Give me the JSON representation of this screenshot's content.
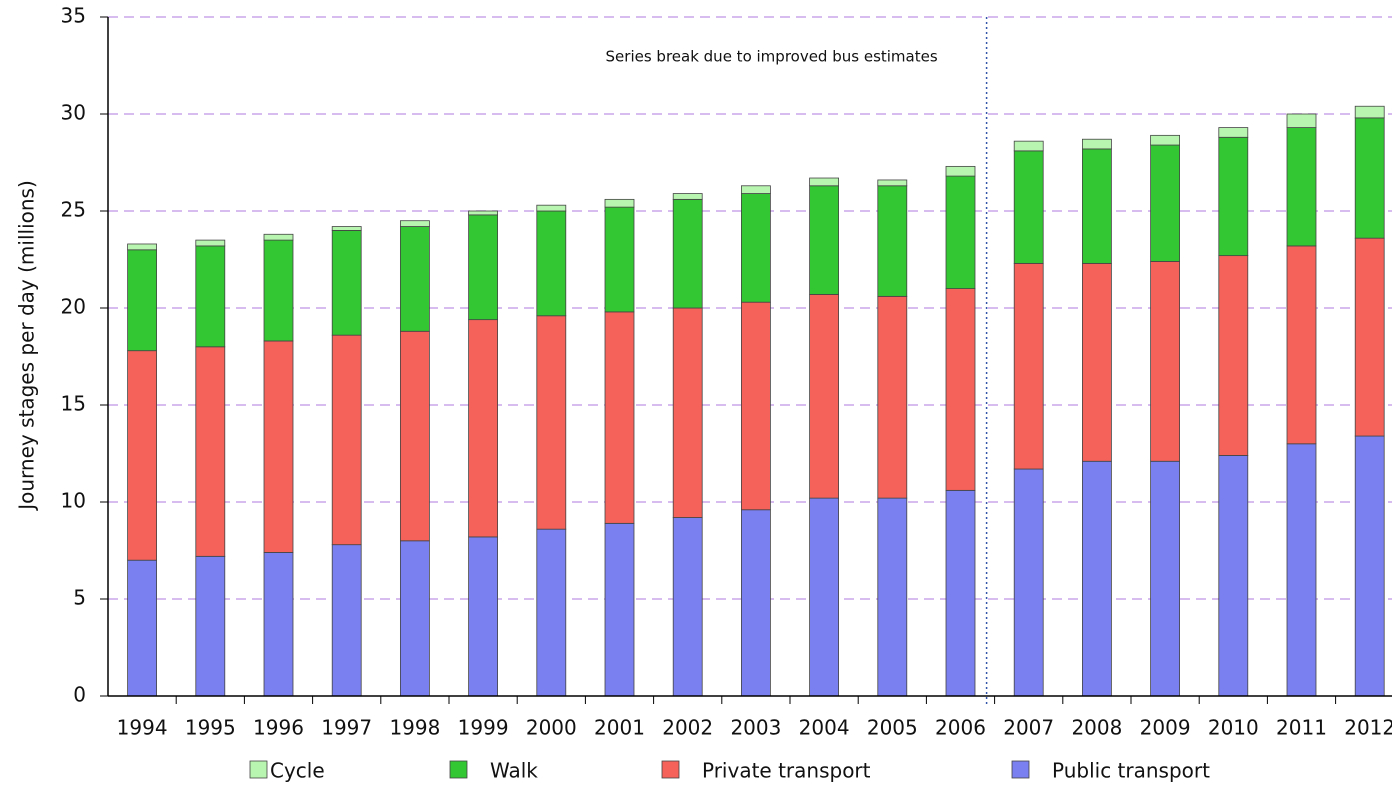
{
  "chart_data": {
    "type": "stacked_bar",
    "ylabel": "Journey stages per day (millions)",
    "categories": [
      "1994",
      "1995",
      "1996",
      "1997",
      "1998",
      "1999",
      "2000",
      "2001",
      "2002",
      "2003",
      "2004",
      "2005",
      "2006",
      "2007",
      "2008",
      "2009",
      "2010",
      "2011",
      "2012"
    ],
    "series": [
      {
        "name": "Public transport",
        "color": "#7b80f0",
        "values": [
          7.0,
          7.2,
          7.4,
          7.8,
          8.0,
          8.2,
          8.6,
          8.9,
          9.2,
          9.6,
          10.2,
          10.2,
          10.6,
          11.7,
          12.1,
          12.1,
          12.4,
          13.0,
          13.4
        ]
      },
      {
        "name": "Private transport",
        "color": "#f4625a",
        "values": [
          10.8,
          10.8,
          10.9,
          10.8,
          10.8,
          11.2,
          11.0,
          10.9,
          10.8,
          10.7,
          10.5,
          10.4,
          10.4,
          10.6,
          10.2,
          10.3,
          10.3,
          10.2,
          10.2
        ]
      },
      {
        "name": "Walk",
        "color": "#33c833",
        "values": [
          5.2,
          5.2,
          5.2,
          5.4,
          5.4,
          5.4,
          5.4,
          5.4,
          5.6,
          5.6,
          5.6,
          5.7,
          5.8,
          5.8,
          5.9,
          6.0,
          6.1,
          6.1,
          6.2
        ]
      },
      {
        "name": "Cycle",
        "color": "#b8f5b0",
        "values": [
          0.3,
          0.3,
          0.3,
          0.2,
          0.3,
          0.2,
          0.3,
          0.4,
          0.3,
          0.4,
          0.4,
          0.3,
          0.5,
          0.5,
          0.5,
          0.5,
          0.5,
          0.7,
          0.6
        ]
      }
    ],
    "ylim": [
      0,
      35
    ],
    "yticks": [
      0,
      5,
      10,
      15,
      20,
      25,
      30,
      35
    ],
    "grid": true,
    "annotation": {
      "text": "Series break due to improved bus estimates",
      "after": "2006"
    },
    "legend": "bottom"
  }
}
